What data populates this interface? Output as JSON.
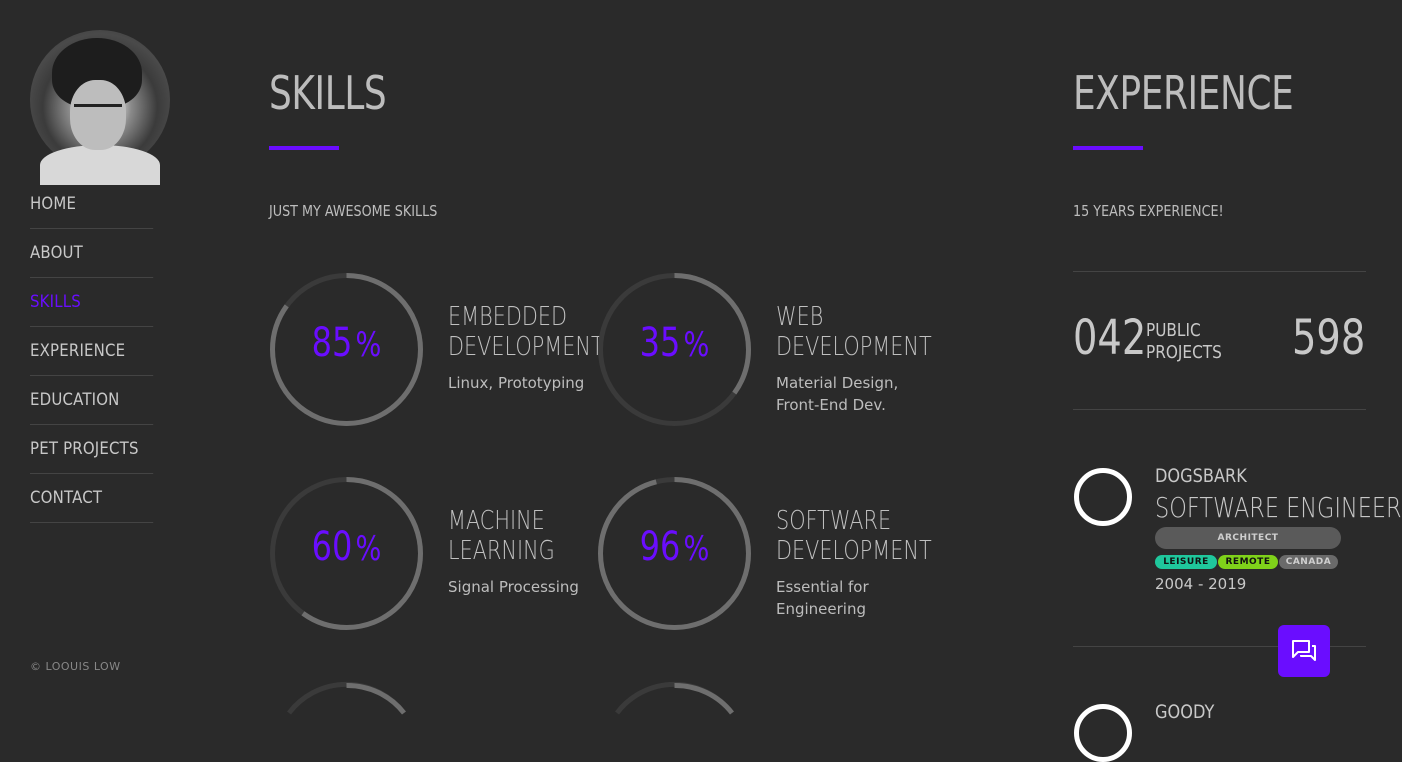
{
  "nav": {
    "items": [
      {
        "label": "HOME"
      },
      {
        "label": "ABOUT"
      },
      {
        "label": "SKILLS",
        "active": true
      },
      {
        "label": "EXPERIENCE"
      },
      {
        "label": "EDUCATION"
      },
      {
        "label": "PET PROJECTS"
      },
      {
        "label": "CONTACT"
      }
    ],
    "copyright": "© LOOUIS LOW"
  },
  "skills": {
    "title": "SKILLS",
    "subtitle": "JUST MY AWESOME SKILLS",
    "items": [
      {
        "percent": "85",
        "unit": "%",
        "name_line1": "EMBEDDED",
        "name_line2": "DEVELOPMENT",
        "desc": "Linux, Prototyping",
        "fraction": 0.85
      },
      {
        "percent": "35",
        "unit": "%",
        "name_line1": "WEB",
        "name_line2": "DEVELOPMENT",
        "desc": "Material Design, Front-End Dev.",
        "fraction": 0.35
      },
      {
        "percent": "60",
        "unit": "%",
        "name_line1": "MACHINE",
        "name_line2": "LEARNING",
        "desc": "Signal Processing",
        "fraction": 0.6
      },
      {
        "percent": "96",
        "unit": "%",
        "name_line1": "SOFTWARE",
        "name_line2": "DEVELOPMENT",
        "desc": "Essential for Engineering",
        "fraction": 0.96
      }
    ]
  },
  "experience": {
    "title": "EXPERIENCE",
    "subtitle": "15 YEARS EXPERIENCE!",
    "stats": [
      {
        "number": "042",
        "label_line1": "PUBLIC",
        "label_line2": "PROJECTS"
      },
      {
        "number": "598",
        "label_line1": "",
        "label_line2": ""
      }
    ],
    "jobs": [
      {
        "company": "DOGSBARK",
        "role": "SOFTWARE ENGINEER",
        "badge": "ARCHITECT",
        "tags": [
          "LEISURE",
          "REMOTE",
          "CANADA"
        ],
        "years": "2004 - 2019"
      },
      {
        "company": "GOODY"
      }
    ]
  },
  "colors": {
    "accent": "#6a0dff",
    "tag_leisure": "#1fc79c",
    "tag_remote": "#7fd21a",
    "tag_canada": "#6a6a6a"
  },
  "chat": {
    "icon": "chat-icon"
  }
}
